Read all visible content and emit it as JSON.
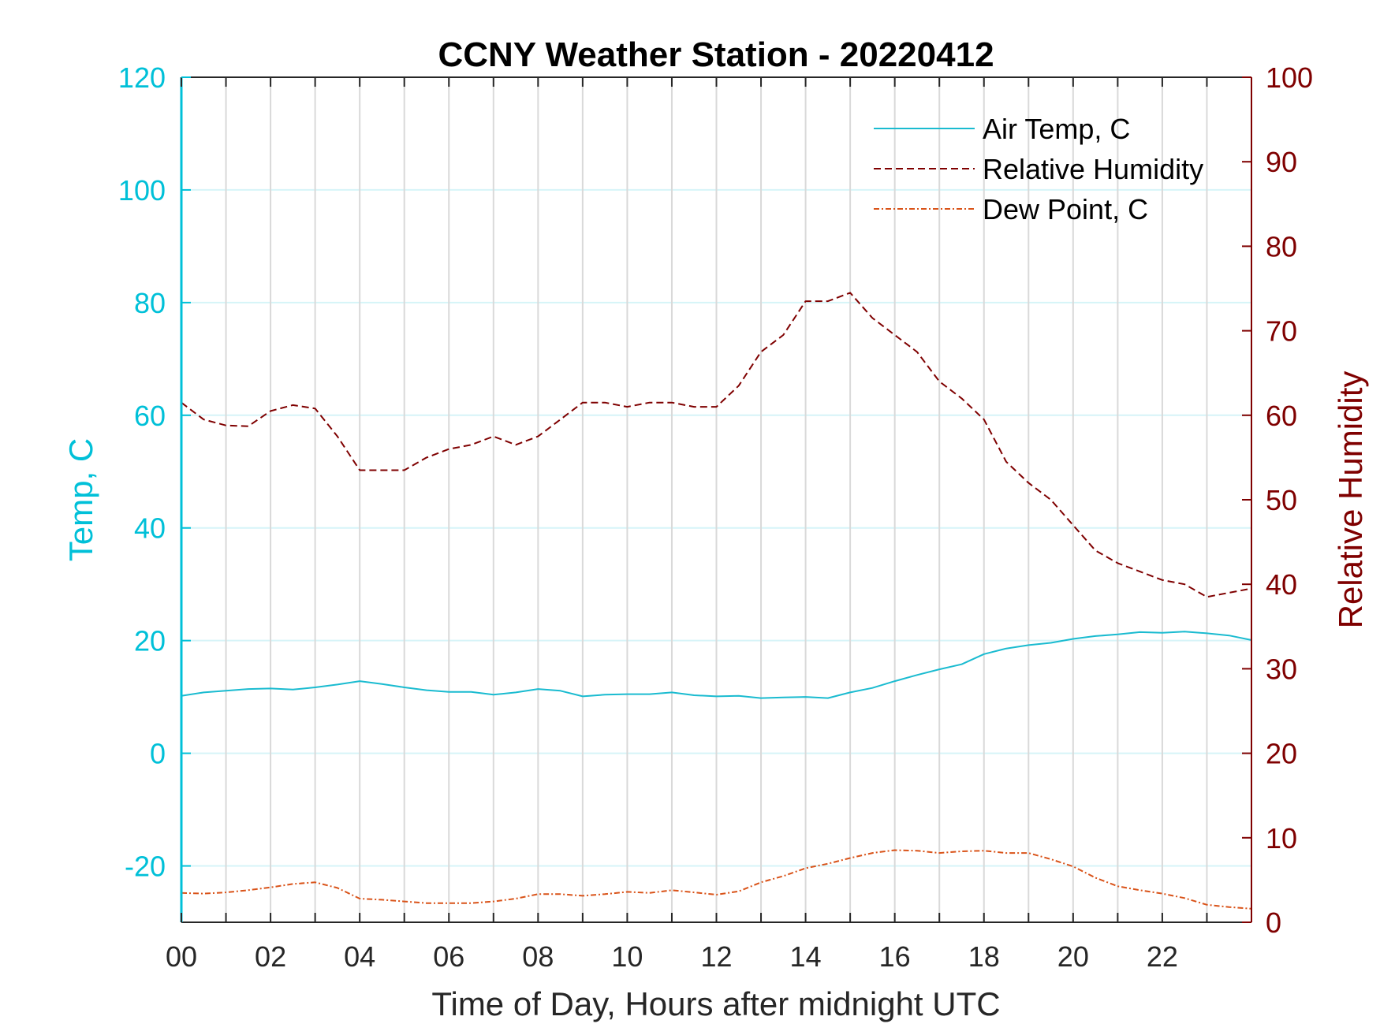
{
  "chart_data": {
    "type": "line",
    "title": "CCNY Weather Station - 20220412",
    "xlabel": "Time of Day, Hours after midnight UTC",
    "ylabel_left": "Temp, C",
    "ylabel_right": "Relative Humidity",
    "xlim": [
      0,
      24
    ],
    "ylim_left": [
      -30,
      120
    ],
    "ylim_right": [
      0,
      100
    ],
    "x_ticks": [
      0,
      2,
      4,
      6,
      8,
      10,
      12,
      14,
      16,
      18,
      20,
      22
    ],
    "x_tick_labels": [
      "00",
      "02",
      "04",
      "06",
      "08",
      "10",
      "12",
      "14",
      "16",
      "18",
      "20",
      "22"
    ],
    "y_left_ticks": [
      -20,
      0,
      20,
      40,
      60,
      80,
      100,
      120
    ],
    "y_right_ticks": [
      0,
      10,
      20,
      30,
      40,
      50,
      60,
      70,
      80,
      90,
      100
    ],
    "grid": true,
    "legend_position": "top-right",
    "colors": {
      "left_axis": "#00C0D8",
      "right_axis": "#7F0000",
      "air_temp": "#1ABBD0",
      "humidity": "#7F0000",
      "dew_point": "#D95319",
      "vgrid": "#D9D9D9",
      "hgrid": "#D6F4F8",
      "frame": "#262626"
    },
    "series": [
      {
        "name": "Air Temp, C",
        "axis": "left",
        "style": "solid",
        "x": [
          0,
          0.5,
          1,
          1.5,
          2,
          2.5,
          3,
          3.5,
          4,
          4.5,
          5,
          5.5,
          6,
          6.5,
          7,
          7.5,
          8,
          8.5,
          9,
          9.5,
          10,
          10.5,
          11,
          11.5,
          12,
          12.5,
          13,
          13.5,
          14,
          14.5,
          15,
          15.5,
          16,
          16.5,
          17,
          17.5,
          18,
          18.5,
          19,
          19.5,
          20,
          20.5,
          21,
          21.5,
          22,
          22.5,
          23,
          23.5,
          24
        ],
        "values": [
          10.2,
          10.8,
          11.1,
          11.4,
          11.5,
          11.3,
          11.7,
          12.2,
          12.8,
          12.3,
          11.7,
          11.2,
          10.9,
          10.9,
          10.4,
          10.8,
          11.4,
          11.1,
          10.1,
          10.4,
          10.5,
          10.5,
          10.8,
          10.3,
          10.1,
          10.2,
          9.8,
          9.9,
          10.0,
          9.8,
          10.8,
          11.6,
          12.8,
          13.9,
          14.9,
          15.8,
          17.6,
          18.6,
          19.2,
          19.6,
          20.3,
          20.8,
          21.1,
          21.5,
          21.4,
          21.6,
          21.3,
          20.9,
          20.1
        ]
      },
      {
        "name": "Relative Humidity",
        "axis": "right",
        "style": "dashed",
        "x": [
          0,
          0.5,
          1,
          1.5,
          2,
          2.5,
          3,
          3.5,
          4,
          4.5,
          5,
          5.5,
          6,
          6.5,
          7,
          7.5,
          8,
          8.5,
          9,
          9.5,
          10,
          10.5,
          11,
          11.5,
          12,
          12.5,
          13,
          13.5,
          14,
          14.5,
          15,
          15.5,
          16,
          16.5,
          17,
          17.5,
          18,
          18.5,
          19,
          19.5,
          20,
          20.5,
          21,
          21.5,
          22,
          22.5,
          23,
          23.5,
          24
        ],
        "values": [
          61.5,
          59.5,
          58.8,
          58.7,
          60.5,
          61.2,
          60.8,
          57.5,
          53.5,
          53.5,
          53.5,
          55,
          56,
          56.5,
          57.5,
          56.5,
          57.5,
          59.5,
          61.5,
          61.5,
          61,
          61.5,
          61.5,
          61,
          61,
          63.5,
          67.5,
          69.5,
          73.5,
          73.5,
          74.5,
          71.5,
          69.5,
          67.5,
          64,
          62,
          59.5,
          54.5,
          52,
          50,
          47,
          44,
          42.5,
          41.5,
          40.5,
          40,
          38.5,
          39,
          39.5
        ]
      },
      {
        "name": "Dew Point, C",
        "axis": "left",
        "style": "dashdot",
        "x": [
          0,
          0.5,
          1,
          1.5,
          2,
          2.5,
          3,
          3.5,
          4,
          4.5,
          5,
          5.5,
          6,
          6.5,
          7,
          7.5,
          8,
          8.5,
          9,
          9.5,
          10,
          10.5,
          11,
          11.5,
          12,
          12.5,
          13,
          13.5,
          14,
          14.5,
          15,
          15.5,
          16,
          16.5,
          17,
          17.5,
          18,
          18.5,
          19,
          19.5,
          20,
          20.5,
          21,
          21.5,
          22,
          22.5,
          23,
          23.5,
          24
        ],
        "values": [
          -24.8,
          -24.9,
          -24.7,
          -24.3,
          -23.8,
          -23.2,
          -22.9,
          -23.9,
          -25.8,
          -26.0,
          -26.3,
          -26.6,
          -26.6,
          -26.6,
          -26.3,
          -25.8,
          -25.0,
          -25.0,
          -25.3,
          -25.0,
          -24.6,
          -24.8,
          -24.3,
          -24.7,
          -25.1,
          -24.5,
          -22.9,
          -21.8,
          -20.4,
          -19.6,
          -18.6,
          -17.7,
          -17.2,
          -17.3,
          -17.7,
          -17.4,
          -17.3,
          -17.7,
          -17.7,
          -18.8,
          -20.1,
          -22.1,
          -23.6,
          -24.3,
          -24.9,
          -25.7,
          -26.9,
          -27.3,
          -27.6
        ]
      }
    ]
  }
}
